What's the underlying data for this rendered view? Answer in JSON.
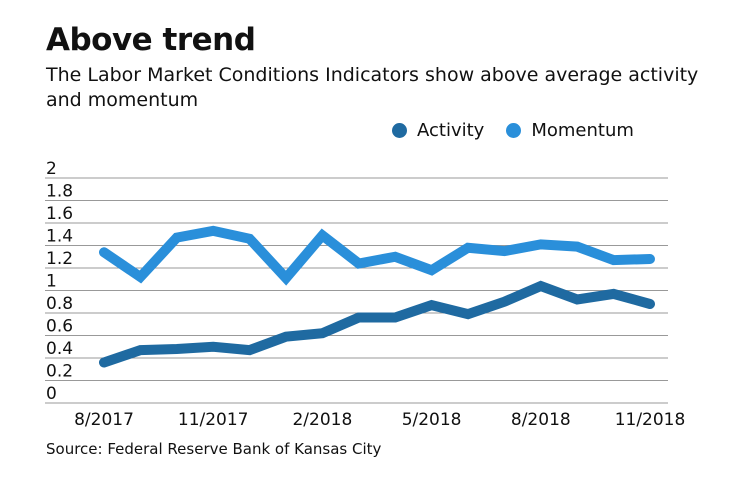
{
  "title": "Above trend",
  "subtitle": "The Labor Market Conditions Indicators show above average activity and momentum",
  "source": "Source: Federal Reserve Bank of Kansas City",
  "colors": {
    "activity": "#1f6aa1",
    "momentum": "#2a8fda",
    "grid": "#999999"
  },
  "chart_data": {
    "type": "line",
    "title": "Above trend",
    "xlabel": "",
    "ylabel": "",
    "ylim": [
      0,
      2
    ],
    "yticks": [
      "0",
      "0.2",
      "0.4",
      "0.6",
      "0.8",
      "1",
      "1.2",
      "1.4",
      "1.6",
      "1.8",
      "2"
    ],
    "xtick_labels": [
      "8/2017",
      "11/2017",
      "2/2018",
      "5/2018",
      "8/2018",
      "11/2018"
    ],
    "x": [
      "8/2017",
      "9/2017",
      "10/2017",
      "11/2017",
      "12/2017",
      "1/2018",
      "2/2018",
      "3/2018",
      "4/2018",
      "5/2018",
      "6/2018",
      "7/2018",
      "8/2018",
      "9/2018",
      "10/2018",
      "11/2018"
    ],
    "grid": true,
    "legend_placement": "top-right",
    "series": [
      {
        "name": "Activity",
        "color": "#1f6aa1",
        "values": [
          0.36,
          0.47,
          0.48,
          0.5,
          0.47,
          0.59,
          0.62,
          0.76,
          0.76,
          0.87,
          0.79,
          0.9,
          1.04,
          0.92,
          0.97,
          0.88
        ]
      },
      {
        "name": "Momentum",
        "color": "#2a8fda",
        "values": [
          1.34,
          1.12,
          1.47,
          1.53,
          1.46,
          1.11,
          1.49,
          1.24,
          1.3,
          1.18,
          1.38,
          1.35,
          1.41,
          1.39,
          1.27,
          1.28
        ]
      }
    ]
  }
}
